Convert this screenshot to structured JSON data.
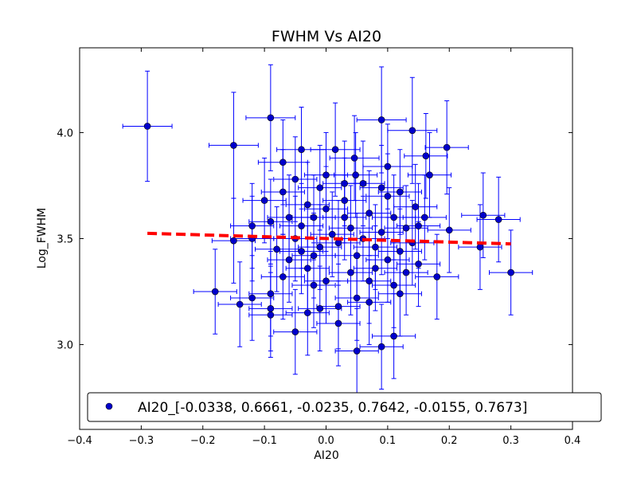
{
  "chart_data": {
    "type": "scatter",
    "title": "FWHM Vs AI20",
    "xlabel": "AI20",
    "ylabel": "Log_FWHM",
    "xlim": [
      -0.4,
      0.4
    ],
    "ylim": [
      2.6,
      4.4
    ],
    "xticks": [
      -0.4,
      -0.3,
      -0.2,
      -0.1,
      0.0,
      0.1,
      0.2,
      0.3,
      0.4
    ],
    "yticks": [
      3.0,
      3.5,
      4.0
    ],
    "xtick_labels": [
      "−0.4",
      "−0.3",
      "−0.2",
      "−0.1",
      "0.0",
      "0.1",
      "0.2",
      "0.3",
      "0.4"
    ],
    "ytick_labels": [
      "3.0",
      "3.5",
      "4.0"
    ],
    "series": [
      {
        "name": "AI20_[-0.0338, 0.6661, -0.0235, 0.7642, -0.0155, 0.7673]",
        "marker": "circle",
        "color": "#0000cc",
        "errorbar_color": "#0000ff",
        "points": [
          {
            "x": -0.29,
            "y": 4.03,
            "xerr": 0.04,
            "yerr": 0.26
          },
          {
            "x": -0.15,
            "y": 3.94,
            "xerr": 0.04,
            "yerr": 0.25
          },
          {
            "x": -0.09,
            "y": 4.07,
            "xerr": 0.04,
            "yerr": 0.25
          },
          {
            "x": 0.09,
            "y": 4.06,
            "xerr": 0.04,
            "yerr": 0.25
          },
          {
            "x": 0.14,
            "y": 4.01,
            "xerr": 0.04,
            "yerr": 0.25
          },
          {
            "x": 0.196,
            "y": 3.93,
            "xerr": 0.035,
            "yerr": 0.22
          },
          {
            "x": 0.162,
            "y": 3.89,
            "xerr": 0.035,
            "yerr": 0.2
          },
          {
            "x": 0.168,
            "y": 3.8,
            "xerr": 0.035,
            "yerr": 0.2
          },
          {
            "x": 0.015,
            "y": 3.92,
            "xerr": 0.04,
            "yerr": 0.22
          },
          {
            "x": -0.04,
            "y": 3.92,
            "xerr": 0.04,
            "yerr": 0.2
          },
          {
            "x": 0.046,
            "y": 3.88,
            "xerr": 0.04,
            "yerr": 0.2
          },
          {
            "x": 0.1,
            "y": 3.84,
            "xerr": 0.04,
            "yerr": 0.2
          },
          {
            "x": -0.07,
            "y": 3.86,
            "xerr": 0.04,
            "yerr": 0.2
          },
          {
            "x": 0.048,
            "y": 3.8,
            "xerr": 0.035,
            "yerr": 0.2
          },
          {
            "x": 0.0,
            "y": 3.8,
            "xerr": 0.035,
            "yerr": 0.2
          },
          {
            "x": -0.05,
            "y": 3.78,
            "xerr": 0.035,
            "yerr": 0.2
          },
          {
            "x": -0.01,
            "y": 3.74,
            "xerr": 0.035,
            "yerr": 0.2
          },
          {
            "x": 0.06,
            "y": 3.76,
            "xerr": 0.035,
            "yerr": 0.2
          },
          {
            "x": 0.12,
            "y": 3.72,
            "xerr": 0.035,
            "yerr": 0.2
          },
          {
            "x": -0.1,
            "y": 3.68,
            "xerr": 0.035,
            "yerr": 0.2
          },
          {
            "x": -0.07,
            "y": 3.72,
            "xerr": 0.035,
            "yerr": 0.2
          },
          {
            "x": 0.03,
            "y": 3.76,
            "xerr": 0.035,
            "yerr": 0.2
          },
          {
            "x": 0.09,
            "y": 3.74,
            "xerr": 0.035,
            "yerr": 0.2
          },
          {
            "x": 0.145,
            "y": 3.65,
            "xerr": 0.035,
            "yerr": 0.2
          },
          {
            "x": 0.255,
            "y": 3.61,
            "xerr": 0.035,
            "yerr": 0.2
          },
          {
            "x": 0.28,
            "y": 3.59,
            "xerr": 0.035,
            "yerr": 0.2
          },
          {
            "x": -0.03,
            "y": 3.66,
            "xerr": 0.035,
            "yerr": 0.2
          },
          {
            "x": 0.0,
            "y": 3.64,
            "xerr": 0.035,
            "yerr": 0.2
          },
          {
            "x": 0.07,
            "y": 3.62,
            "xerr": 0.035,
            "yerr": 0.2
          },
          {
            "x": 0.11,
            "y": 3.6,
            "xerr": 0.035,
            "yerr": 0.2
          },
          {
            "x": -0.12,
            "y": 3.56,
            "xerr": 0.035,
            "yerr": 0.2
          },
          {
            "x": -0.09,
            "y": 3.58,
            "xerr": 0.035,
            "yerr": 0.2
          },
          {
            "x": 0.2,
            "y": 3.54,
            "xerr": 0.035,
            "yerr": 0.2
          },
          {
            "x": 0.15,
            "y": 3.56,
            "xerr": 0.035,
            "yerr": 0.2
          },
          {
            "x": -0.04,
            "y": 3.56,
            "xerr": 0.035,
            "yerr": 0.2
          },
          {
            "x": 0.04,
            "y": 3.55,
            "xerr": 0.035,
            "yerr": 0.2
          },
          {
            "x": -0.15,
            "y": 3.49,
            "xerr": 0.035,
            "yerr": 0.2
          },
          {
            "x": -0.12,
            "y": 3.5,
            "xerr": 0.035,
            "yerr": 0.2
          },
          {
            "x": 0.25,
            "y": 3.46,
            "xerr": 0.035,
            "yerr": 0.2
          },
          {
            "x": 0.3,
            "y": 3.34,
            "xerr": 0.035,
            "yerr": 0.2
          },
          {
            "x": -0.05,
            "y": 3.5,
            "xerr": 0.035,
            "yerr": 0.2
          },
          {
            "x": 0.02,
            "y": 3.48,
            "xerr": 0.035,
            "yerr": 0.2
          },
          {
            "x": 0.08,
            "y": 3.46,
            "xerr": 0.035,
            "yerr": 0.2
          },
          {
            "x": 0.12,
            "y": 3.44,
            "xerr": 0.035,
            "yerr": 0.2
          },
          {
            "x": -0.02,
            "y": 3.42,
            "xerr": 0.035,
            "yerr": 0.2
          },
          {
            "x": 0.05,
            "y": 3.42,
            "xerr": 0.035,
            "yerr": 0.2
          },
          {
            "x": 0.15,
            "y": 3.38,
            "xerr": 0.035,
            "yerr": 0.2
          },
          {
            "x": -0.06,
            "y": 3.4,
            "xerr": 0.035,
            "yerr": 0.2
          },
          {
            "x": 0.1,
            "y": 3.4,
            "xerr": 0.035,
            "yerr": 0.2
          },
          {
            "x": 0.18,
            "y": 3.32,
            "xerr": 0.035,
            "yerr": 0.2
          },
          {
            "x": -0.03,
            "y": 3.36,
            "xerr": 0.035,
            "yerr": 0.2
          },
          {
            "x": 0.04,
            "y": 3.34,
            "xerr": 0.035,
            "yerr": 0.2
          },
          {
            "x": 0.13,
            "y": 3.34,
            "xerr": 0.035,
            "yerr": 0.2
          },
          {
            "x": -0.07,
            "y": 3.32,
            "xerr": 0.035,
            "yerr": 0.2
          },
          {
            "x": 0.07,
            "y": 3.3,
            "xerr": 0.035,
            "yerr": 0.2
          },
          {
            "x": 0.0,
            "y": 3.3,
            "xerr": 0.035,
            "yerr": 0.2
          },
          {
            "x": 0.11,
            "y": 3.28,
            "xerr": 0.035,
            "yerr": 0.2
          },
          {
            "x": -0.18,
            "y": 3.25,
            "xerr": 0.035,
            "yerr": 0.2
          },
          {
            "x": -0.09,
            "y": 3.24,
            "xerr": 0.035,
            "yerr": 0.2
          },
          {
            "x": -0.12,
            "y": 3.22,
            "xerr": 0.035,
            "yerr": 0.2
          },
          {
            "x": 0.05,
            "y": 3.22,
            "xerr": 0.035,
            "yerr": 0.2
          },
          {
            "x": 0.12,
            "y": 3.24,
            "xerr": 0.035,
            "yerr": 0.2
          },
          {
            "x": -0.14,
            "y": 3.19,
            "xerr": 0.035,
            "yerr": 0.2
          },
          {
            "x": 0.07,
            "y": 3.2,
            "xerr": 0.035,
            "yerr": 0.2
          },
          {
            "x": -0.01,
            "y": 3.17,
            "xerr": 0.035,
            "yerr": 0.2
          },
          {
            "x": -0.09,
            "y": 3.17,
            "xerr": 0.035,
            "yerr": 0.2
          },
          {
            "x": 0.02,
            "y": 3.18,
            "xerr": 0.035,
            "yerr": 0.2
          },
          {
            "x": -0.03,
            "y": 3.15,
            "xerr": 0.035,
            "yerr": 0.2
          },
          {
            "x": -0.09,
            "y": 3.14,
            "xerr": 0.035,
            "yerr": 0.2
          },
          {
            "x": 0.02,
            "y": 3.1,
            "xerr": 0.035,
            "yerr": 0.2
          },
          {
            "x": -0.05,
            "y": 3.06,
            "xerr": 0.035,
            "yerr": 0.2
          },
          {
            "x": 0.11,
            "y": 3.04,
            "xerr": 0.035,
            "yerr": 0.2
          },
          {
            "x": 0.09,
            "y": 2.99,
            "xerr": 0.035,
            "yerr": 0.2
          },
          {
            "x": 0.05,
            "y": 2.97,
            "xerr": 0.035,
            "yerr": 0.2
          },
          {
            "x": -0.02,
            "y": 3.6,
            "xerr": 0.035,
            "yerr": 0.2
          },
          {
            "x": 0.03,
            "y": 3.6,
            "xerr": 0.035,
            "yerr": 0.2
          },
          {
            "x": 0.09,
            "y": 3.53,
            "xerr": 0.035,
            "yerr": 0.2
          },
          {
            "x": -0.08,
            "y": 3.45,
            "xerr": 0.035,
            "yerr": 0.2
          },
          {
            "x": 0.06,
            "y": 3.5,
            "xerr": 0.035,
            "yerr": 0.2
          },
          {
            "x": 0.14,
            "y": 3.48,
            "xerr": 0.035,
            "yerr": 0.2
          },
          {
            "x": 0.01,
            "y": 3.52,
            "xerr": 0.035,
            "yerr": 0.2
          },
          {
            "x": -0.04,
            "y": 3.44,
            "xerr": 0.035,
            "yerr": 0.2
          },
          {
            "x": 0.16,
            "y": 3.6,
            "xerr": 0.035,
            "yerr": 0.2
          },
          {
            "x": -0.02,
            "y": 3.28,
            "xerr": 0.035,
            "yerr": 0.2
          },
          {
            "x": 0.1,
            "y": 3.7,
            "xerr": 0.035,
            "yerr": 0.2
          },
          {
            "x": -0.06,
            "y": 3.6,
            "xerr": 0.035,
            "yerr": 0.2
          },
          {
            "x": 0.03,
            "y": 3.68,
            "xerr": 0.035,
            "yerr": 0.2
          },
          {
            "x": 0.08,
            "y": 3.36,
            "xerr": 0.035,
            "yerr": 0.2
          },
          {
            "x": 0.13,
            "y": 3.55,
            "xerr": 0.035,
            "yerr": 0.2
          },
          {
            "x": -0.01,
            "y": 3.46,
            "xerr": 0.035,
            "yerr": 0.2
          }
        ]
      },
      {
        "name": "fit",
        "type": "line",
        "style": "dashed",
        "color": "#ff0000",
        "x": [
          -0.29,
          0.3
        ],
        "y": [
          3.525,
          3.475
        ]
      }
    ],
    "legend": {
      "location": "lower-center",
      "entries": [
        "AI20_[-0.0338, 0.6661, -0.0235, 0.7642, -0.0155, 0.7673]"
      ]
    }
  }
}
